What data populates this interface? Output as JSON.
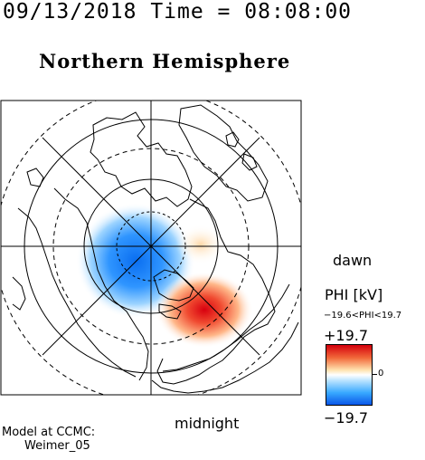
{
  "header": {
    "timestamp": "09/13/2018 Time = 08:08:00"
  },
  "plot": {
    "title": "Northern Hemisphere",
    "label_dawn": "dawn",
    "label_midnight": "midnight"
  },
  "legend": {
    "title": "PHI [kV]",
    "range_text": "−19.6<PHI<19.7",
    "max_label": "+19.7",
    "min_label": "−19.7",
    "zero_label": "0",
    "colors": {
      "max": "#d4000c",
      "mid": "#ffffff",
      "min": "#0a57e8"
    }
  },
  "footer": {
    "model_label": "Model at CCMC:",
    "model_name": "Weimer_05"
  }
}
